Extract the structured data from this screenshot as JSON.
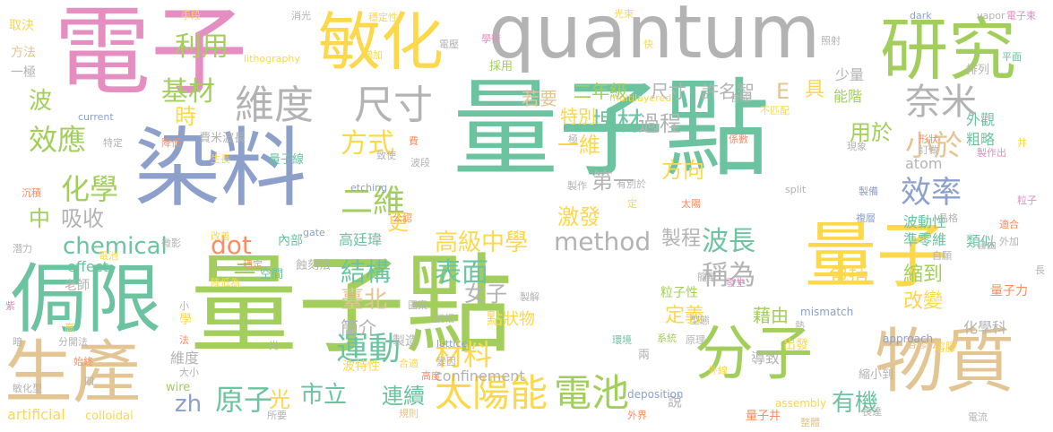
{
  "colors": {
    "background": "#ffffff",
    "teal": "#6cc3a0",
    "pink": "#e58ec1",
    "yellow": "#fcd84a",
    "green": "#a2cf5b",
    "lavender": "#8da0cb",
    "gray": "#b3b3b3",
    "tan": "#e3c493",
    "orange": "#fc8d62"
  },
  "words": [
    {
      "text": "量子點"
    },
    {
      "text": "量子點"
    },
    {
      "text": "電子"
    },
    {
      "text": "染料"
    },
    {
      "text": "quantum"
    },
    {
      "text": "敏化"
    },
    {
      "text": "研究"
    },
    {
      "text": "侷限"
    },
    {
      "text": "量子"
    },
    {
      "text": "生產"
    },
    {
      "text": "物質"
    },
    {
      "text": "分子"
    },
    {
      "text": "維度"
    },
    {
      "text": "尺寸"
    },
    {
      "text": "太陽能"
    },
    {
      "text": "電池"
    },
    {
      "text": "運動"
    },
    {
      "text": "原子"
    },
    {
      "text": "材料"
    },
    {
      "text": "高級中學"
    },
    {
      "text": "method"
    },
    {
      "text": "chemical"
    },
    {
      "text": "結構"
    },
    {
      "text": "效應"
    },
    {
      "text": "化學"
    },
    {
      "text": "基材"
    },
    {
      "text": "利用"
    },
    {
      "text": "方式"
    },
    {
      "text": "二維"
    },
    {
      "text": "塊材"
    },
    {
      "text": "過程"
    },
    {
      "text": "奈米"
    },
    {
      "text": "小於"
    },
    {
      "text": "效率"
    },
    {
      "text": "波長"
    },
    {
      "text": "稱為"
    },
    {
      "text": "表面"
    },
    {
      "text": "臺北"
    },
    {
      "text": "市立"
    },
    {
      "text": "連續"
    },
    {
      "text": "有機"
    },
    {
      "text": "dot"
    },
    {
      "text": "zh"
    },
    {
      "text": "光"
    },
    {
      "text": "吸收"
    },
    {
      "text": "中"
    },
    {
      "text": "波"
    },
    {
      "text": "時"
    },
    {
      "text": "一維"
    },
    {
      "text": "第一"
    },
    {
      "text": "方向"
    },
    {
      "text": "用於"
    },
    {
      "text": "更"
    },
    {
      "text": "激發"
    },
    {
      "text": "製程"
    },
    {
      "text": "包括"
    },
    {
      "text": "改變"
    },
    {
      "text": "縮到"
    },
    {
      "text": "定義"
    },
    {
      "text": "藉由"
    },
    {
      "text": "點狀物"
    },
    {
      "text": "女子"
    },
    {
      "text": "簡介"
    },
    {
      "text": "三"
    },
    {
      "text": "許名智"
    },
    {
      "text": "尺寸"
    },
    {
      "text": "二年級"
    },
    {
      "text": "若要"
    },
    {
      "text": "特別"
    },
    {
      "text": "具"
    },
    {
      "text": "E"
    },
    {
      "text": "少量"
    },
    {
      "text": "能階"
    },
    {
      "text": "外觀"
    },
    {
      "text": "粗略"
    },
    {
      "text": "atom"
    },
    {
      "text": "波動性"
    },
    {
      "text": "準零維"
    },
    {
      "text": "類似"
    },
    {
      "text": "化學科"
    },
    {
      "text": "量子力"
    },
    {
      "text": "高廷瑋"
    },
    {
      "text": "內部"
    },
    {
      "text": "蝕刻法"
    },
    {
      "text": "空間"
    },
    {
      "text": "confinement"
    },
    {
      "text": "波特性"
    },
    {
      "text": "製造"
    },
    {
      "text": "維度"
    },
    {
      "text": "effect"
    },
    {
      "text": "老師"
    },
    {
      "text": "artificial"
    },
    {
      "text": "colloidal"
    },
    {
      "text": "wire"
    },
    {
      "text": "說"
    },
    {
      "text": "導致"
    },
    {
      "text": "出發"
    },
    {
      "text": "縮小到"
    },
    {
      "text": "量子井"
    },
    {
      "text": "量子線"
    },
    {
      "text": "費米波長"
    },
    {
      "text": "一極"
    },
    {
      "text": "方法"
    },
    {
      "text": "取決"
    },
    {
      "text": "lithography"
    },
    {
      "text": "multilayered"
    },
    {
      "text": "溶膠法"
    },
    {
      "text": "排列"
    },
    {
      "text": "deposition"
    },
    {
      "text": "approach"
    },
    {
      "text": "溶膠"
    },
    {
      "text": "assembly"
    },
    {
      "text": "mismatch"
    },
    {
      "text": "lattice"
    },
    {
      "text": "etching"
    },
    {
      "text": "gate"
    },
    {
      "text": "current"
    },
    {
      "text": "split"
    },
    {
      "text": "vapor"
    },
    {
      "text": "dark"
    },
    {
      "text": "電子束"
    },
    {
      "text": "光束"
    },
    {
      "text": "消光"
    },
    {
      "text": "穩定性"
    },
    {
      "text": "手段"
    },
    {
      "text": "學術"
    },
    {
      "text": "照射"
    },
    {
      "text": "增加"
    },
    {
      "text": "電壓"
    },
    {
      "text": "採用"
    },
    {
      "text": "合成"
    },
    {
      "text": "不匹配"
    },
    {
      "text": "形狀"
    },
    {
      "text": "訂做"
    },
    {
      "text": "製作出"
    },
    {
      "text": "現象"
    },
    {
      "text": "係數"
    },
    {
      "text": "致使"
    },
    {
      "text": "降低"
    },
    {
      "text": "特定"
    },
    {
      "text": "生長"
    },
    {
      "text": "沉積"
    },
    {
      "text": "電池"
    },
    {
      "text": "改善"
    },
    {
      "text": "微影"
    },
    {
      "text": "穩定"
    },
    {
      "text": "降低為"
    },
    {
      "text": "公認"
    },
    {
      "text": "圖案"
    },
    {
      "text": "氣相"
    },
    {
      "text": "製解"
    },
    {
      "text": "變因"
    },
    {
      "text": "合適"
    },
    {
      "text": "高度"
    },
    {
      "text": "環境"
    },
    {
      "text": "型態"
    },
    {
      "text": "兩"
    },
    {
      "text": "外線"
    },
    {
      "text": "規則"
    },
    {
      "text": "外界"
    },
    {
      "text": "整體"
    },
    {
      "text": "電流"
    },
    {
      "text": "自由"
    },
    {
      "text": "自願"
    },
    {
      "text": "晶格"
    },
    {
      "text": "長"
    },
    {
      "text": "適合"
    },
    {
      "text": "平面"
    },
    {
      "text": "粒子"
    },
    {
      "text": "井"
    },
    {
      "text": "外加"
    },
    {
      "text": "複層"
    },
    {
      "text": "製備"
    },
    {
      "text": "太陽"
    },
    {
      "text": "有別於"
    },
    {
      "text": "製作"
    },
    {
      "text": "系統"
    },
    {
      "text": "原理"
    },
    {
      "text": "熱"
    },
    {
      "text": "發生"
    },
    {
      "text": "粒子性"
    },
    {
      "text": "簡單"
    },
    {
      "text": "定"
    },
    {
      "text": "極"
    },
    {
      "text": "費"
    },
    {
      "text": "波段"
    },
    {
      "text": "快"
    },
    {
      "text": "長達"
    },
    {
      "text": "紫"
    },
    {
      "text": "潛力"
    },
    {
      "text": "暗"
    },
    {
      "text": "分開法"
    },
    {
      "text": "始終"
    },
    {
      "text": "大小"
    },
    {
      "text": "所要"
    },
    {
      "text": "四"
    },
    {
      "text": "敏化型"
    },
    {
      "text": "法"
    },
    {
      "text": "學"
    },
    {
      "text": "高"
    },
    {
      "text": "小"
    },
    {
      "text": "光"
    }
  ]
}
